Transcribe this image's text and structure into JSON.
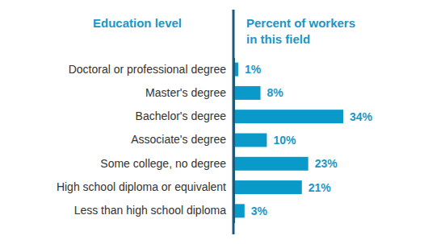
{
  "chart_data": {
    "type": "bar",
    "orientation": "horizontal",
    "ylabel": "Education level",
    "xlabel": "Percent of workers in this field",
    "categories": [
      "Doctoral or professional degree",
      "Master's degree",
      "Bachelor's degree",
      "Associate's degree",
      "Some college, no degree",
      "High school diploma or equivalent",
      "Less than high school diploma"
    ],
    "values": [
      1,
      8,
      34,
      10,
      23,
      21,
      3
    ],
    "value_labels": [
      "1%",
      "8%",
      "34%",
      "10%",
      "23%",
      "21%",
      "3%"
    ],
    "color": "#0a9ac9",
    "xlim": [
      0,
      34
    ],
    "data_labels": true,
    "tick_labels": "y",
    "grid": false
  }
}
